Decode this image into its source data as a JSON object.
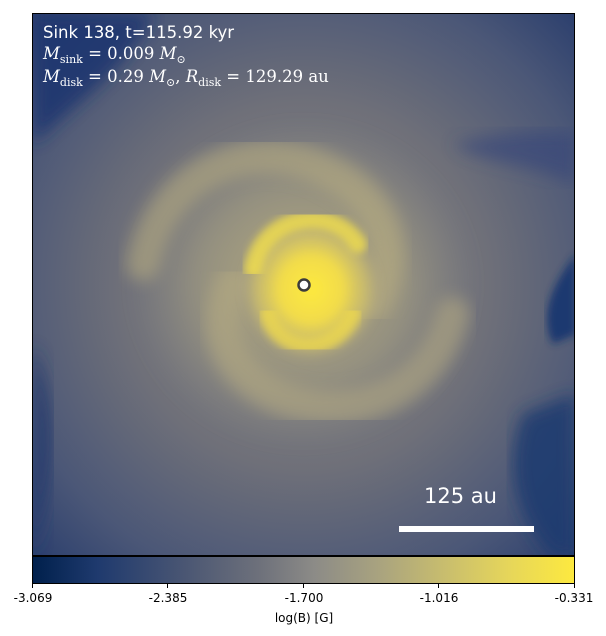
{
  "annotation": {
    "line1": "Sink 138, t=115.92 kyr",
    "msink_symbol": "M",
    "msink_sub": "sink",
    "msink_value": "= 0.009",
    "mdisk_symbol": "M",
    "mdisk_sub": "disk",
    "mdisk_value": "= 0.29",
    "rdisk_symbol": "R",
    "rdisk_sub": "disk",
    "rdisk_value": "= 129.29",
    "rdisk_unit": "au",
    "sun_unit": "M",
    "sun_sub": "⊙"
  },
  "scalebar": {
    "label": "125 au"
  },
  "colorbar": {
    "label": "log(B) [G]",
    "ticks": [
      "-3.069",
      "-2.385",
      "-1.700",
      "-1.016",
      "-0.331"
    ],
    "colors": [
      "#00204c",
      "#1f3a6e",
      "#6e717b",
      "#a9a37f",
      "#fde93f"
    ]
  }
}
